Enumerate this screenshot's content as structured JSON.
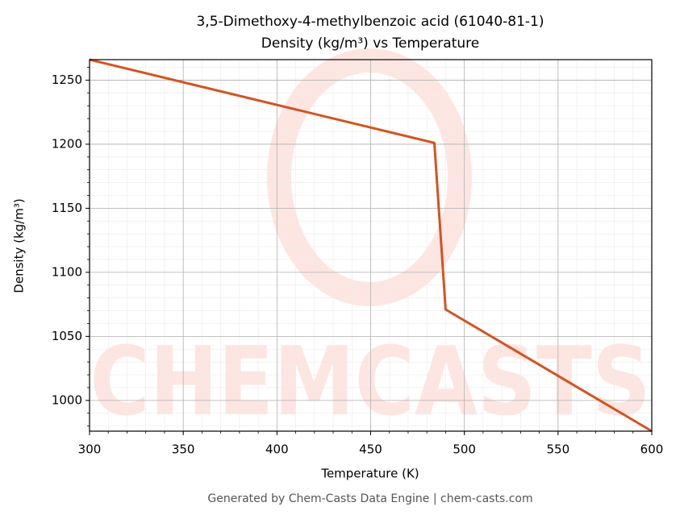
{
  "chart_data": {
    "type": "line",
    "title": "3,5-Dimethoxy-4-methylbenzoic acid (61040-81-1)",
    "subtitle": "Density (kg/m³) vs Temperature",
    "x_label": "Temperature (K)",
    "y_label": "Density (kg/m³)",
    "x": [
      300,
      484,
      490,
      600
    ],
    "series": [
      {
        "name": "Density",
        "color": "#d5531f",
        "values": [
          1266,
          1201,
          1071,
          976
        ]
      }
    ],
    "xlim": [
      300,
      600
    ],
    "ylim": [
      976,
      1266
    ],
    "xticks": [
      300,
      350,
      400,
      450,
      500,
      550,
      600
    ],
    "yticks": [
      1000,
      1050,
      1100,
      1150,
      1200,
      1250
    ],
    "grid": true,
    "minor_grid": true,
    "watermark": "CHEMCASTS",
    "footer": "Generated by Chem-Casts Data Engine | chem-casts.com"
  }
}
